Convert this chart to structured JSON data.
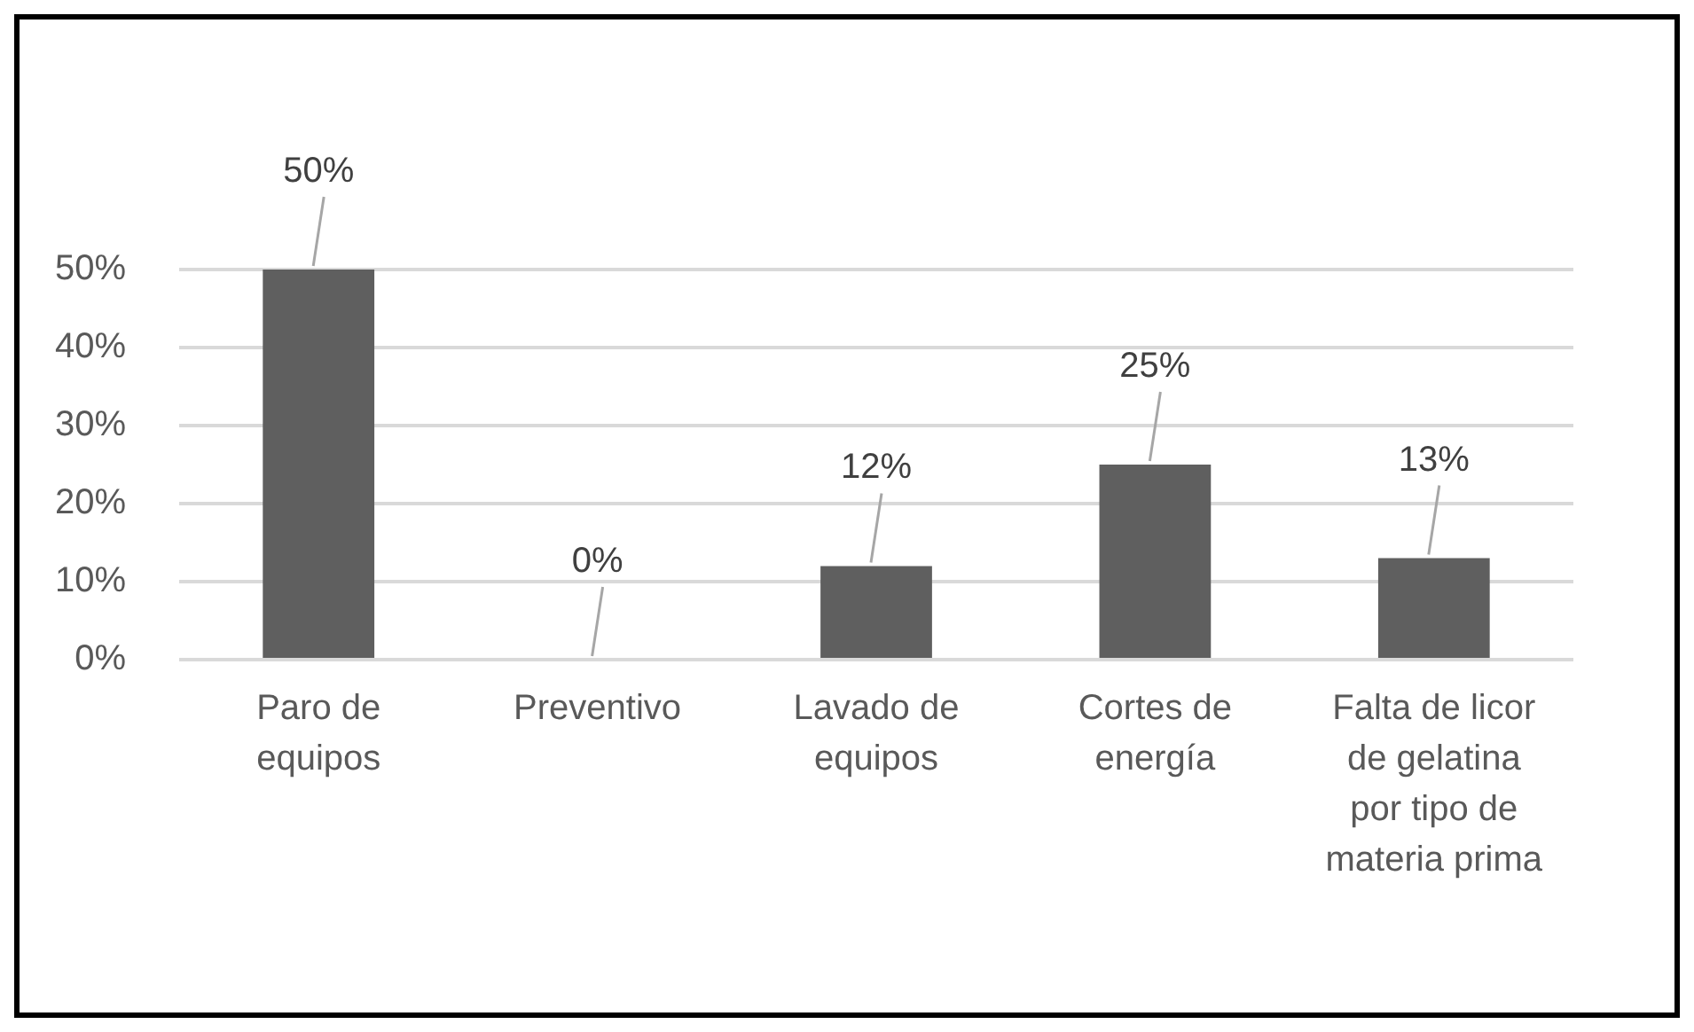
{
  "chart_data": {
    "type": "bar",
    "categories": [
      "Paro de equipos",
      "Preventivo",
      "Lavado de equipos",
      "Cortes de energía",
      "Falta de licor de gelatina por tipo de materia prima"
    ],
    "values": [
      50,
      0,
      12,
      25,
      13
    ],
    "color": "#5f5f5f",
    "value_labels": [
      "50%",
      "0%",
      "12%",
      "25%",
      "13%"
    ],
    "ylim": [
      0,
      50
    ],
    "yticks": [
      {
        "value": 0,
        "label": "0%"
      },
      {
        "value": 10,
        "label": "10%"
      },
      {
        "value": 20,
        "label": "20%"
      },
      {
        "value": 30,
        "label": "30%"
      },
      {
        "value": 40,
        "label": "40%"
      },
      {
        "value": 50,
        "label": "50%"
      }
    ],
    "grid": "y"
  }
}
